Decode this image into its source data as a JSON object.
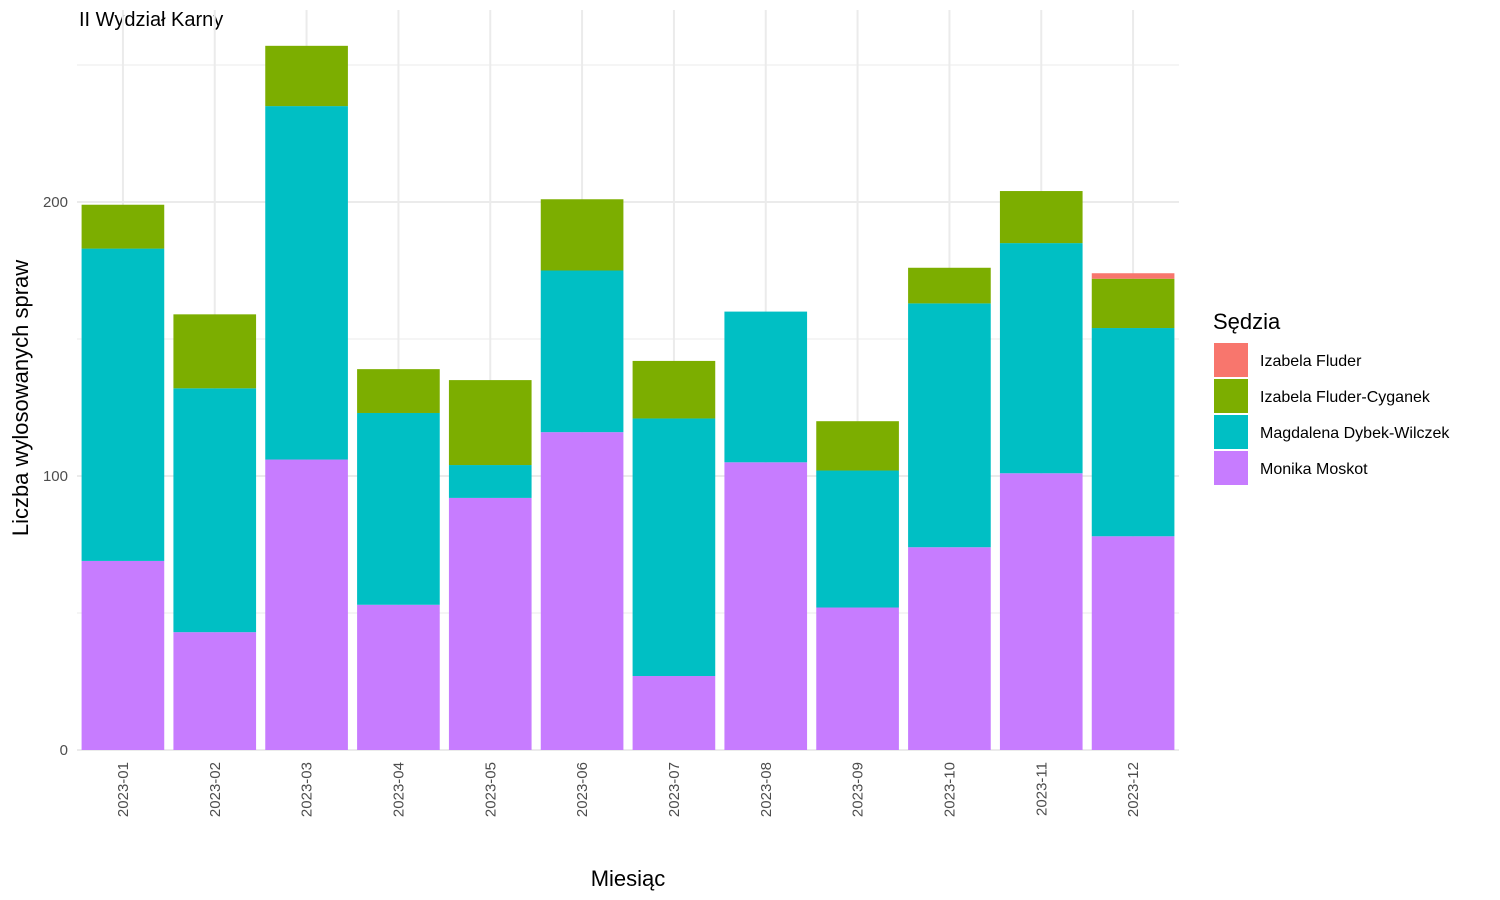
{
  "chart_data": {
    "type": "bar",
    "stacked": true,
    "title": "II Wydział Karny",
    "xlabel": "Miesiąc",
    "ylabel": "Liczba wylosowanych spraw",
    "ylim": [
      0,
      260
    ],
    "y_ticks": [
      0,
      100,
      200
    ],
    "grid": true,
    "legend_position": "right",
    "legend_title": "Sędzia",
    "categories": [
      "2023-01",
      "2023-02",
      "2023-03",
      "2023-04",
      "2023-05",
      "2023-06",
      "2023-07",
      "2023-08",
      "2023-09",
      "2023-10",
      "2023-11",
      "2023-12"
    ],
    "series": [
      {
        "name": "Monika Moskot",
        "color": "#C77CFF",
        "values": [
          69,
          43,
          106,
          53,
          92,
          116,
          27,
          105,
          52,
          74,
          101,
          78
        ]
      },
      {
        "name": "Magdalena Dybek-Wilczek",
        "color": "#00BFC4",
        "values": [
          114,
          89,
          129,
          70,
          12,
          59,
          94,
          55,
          50,
          89,
          84,
          76
        ]
      },
      {
        "name": "Izabela Fluder-Cyganek",
        "color": "#7CAE00",
        "values": [
          16,
          27,
          22,
          16,
          31,
          26,
          21,
          0,
          18,
          13,
          19,
          18
        ]
      },
      {
        "name": "Izabela Fluder",
        "color": "#F8766D",
        "values": [
          0,
          0,
          0,
          0,
          0,
          0,
          0,
          0,
          0,
          0,
          0,
          2
        ]
      }
    ],
    "legend_order": [
      "Izabela Fluder",
      "Izabela Fluder-Cyganek",
      "Magdalena Dybek-Wilczek",
      "Monika Moskot"
    ]
  }
}
